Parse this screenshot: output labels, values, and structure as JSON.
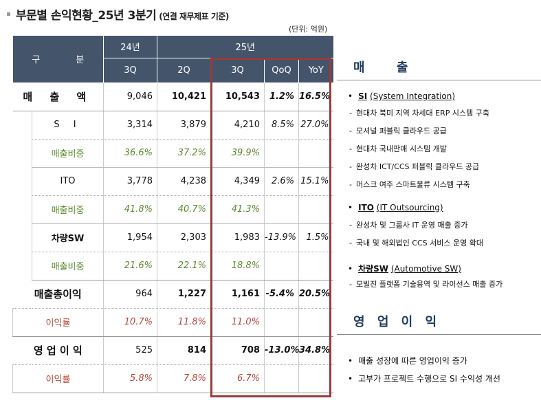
{
  "header": {
    "title": "부문별 손익현황_25년 3분기",
    "subtitle": "(연결 재무제표 기준)",
    "unit": "(단위: 억원)"
  },
  "table": {
    "col_group": "구   분",
    "year_prev": "24년",
    "year_cur": "25년",
    "q_prev": "3Q",
    "q2": "2Q",
    "q3": "3Q",
    "qoq": "QoQ",
    "yoy": "YoY",
    "rows": {
      "revenue": {
        "label": "매 출 액",
        "v1": "9,046",
        "v2": "10,421",
        "v3": "10,543",
        "qoq": "1.2%",
        "yoy": "16.5%"
      },
      "si": {
        "label": "S I",
        "v1": "3,314",
        "v2": "3,879",
        "v3": "4,210",
        "qoq": "8.5%",
        "yoy": "27.0%"
      },
      "si_pct": {
        "label": "매출비중",
        "v1": "36.6%",
        "v2": "37.2%",
        "v3": "39.9%"
      },
      "ito": {
        "label": "ITO",
        "v1": "3,778",
        "v2": "4,238",
        "v3": "4,349",
        "qoq": "2.6%",
        "yoy": "15.1%"
      },
      "ito_pct": {
        "label": "매출비중",
        "v1": "41.8%",
        "v2": "40.7%",
        "v3": "41.3%"
      },
      "auto": {
        "label": "차량SW",
        "v1": "1,954",
        "v2": "2,303",
        "v3": "1,983",
        "qoq": "-13.9%",
        "yoy": "1.5%"
      },
      "auto_pct": {
        "label": "매출비중",
        "v1": "21.6%",
        "v2": "22.1%",
        "v3": "18.8%"
      },
      "gross": {
        "label": "매출총이익",
        "v1": "964",
        "v2": "1,227",
        "v3": "1,161",
        "qoq": "-5.4%",
        "yoy": "20.5%"
      },
      "gross_pct": {
        "label": "이익률",
        "v1": "10.7%",
        "v2": "11.8%",
        "v3": "11.0%"
      },
      "op": {
        "label": "영 업 이 익",
        "v1": "525",
        "v2": "814",
        "v3": "708",
        "qoq": "-13.0%",
        "yoy": "34.8%"
      },
      "op_pct": {
        "label": "이익률",
        "v1": "5.8%",
        "v2": "7.8%",
        "v3": "6.7%"
      }
    }
  },
  "right": {
    "sales_heading": "매 출",
    "si_title": "SI",
    "si_desc": "(System Integration)",
    "si_items": [
      "현대차 북미 지역 차세대 ERP 시스템 구축",
      "모셔널 퍼블릭 클라우드 공급",
      "현대차 국내판매 시스템 개발",
      "완성차 ICT/CCS 퍼블릭 클라우드 공급",
      "머스크 여주 스마트물류 시스템 구축"
    ],
    "ito_title": "ITO",
    "ito_desc": "(IT Outsourcing)",
    "ito_items": [
      "완성차 및 그룹사 IT 운영 매출 증가",
      "국내 및 해외법인 CCS 서비스 운영 확대"
    ],
    "auto_title": "차량SW",
    "auto_desc": "(Automotive SW)",
    "auto_items": [
      "모빌진 플랫폼 기술용역 및 라이선스 매출 증가"
    ],
    "op_heading": "영 업 이 익",
    "op_items": [
      "매출 성장에 따른 영업이익 증가",
      "고부가 프로젝트 수행으로 SI 수익성 개선"
    ]
  }
}
